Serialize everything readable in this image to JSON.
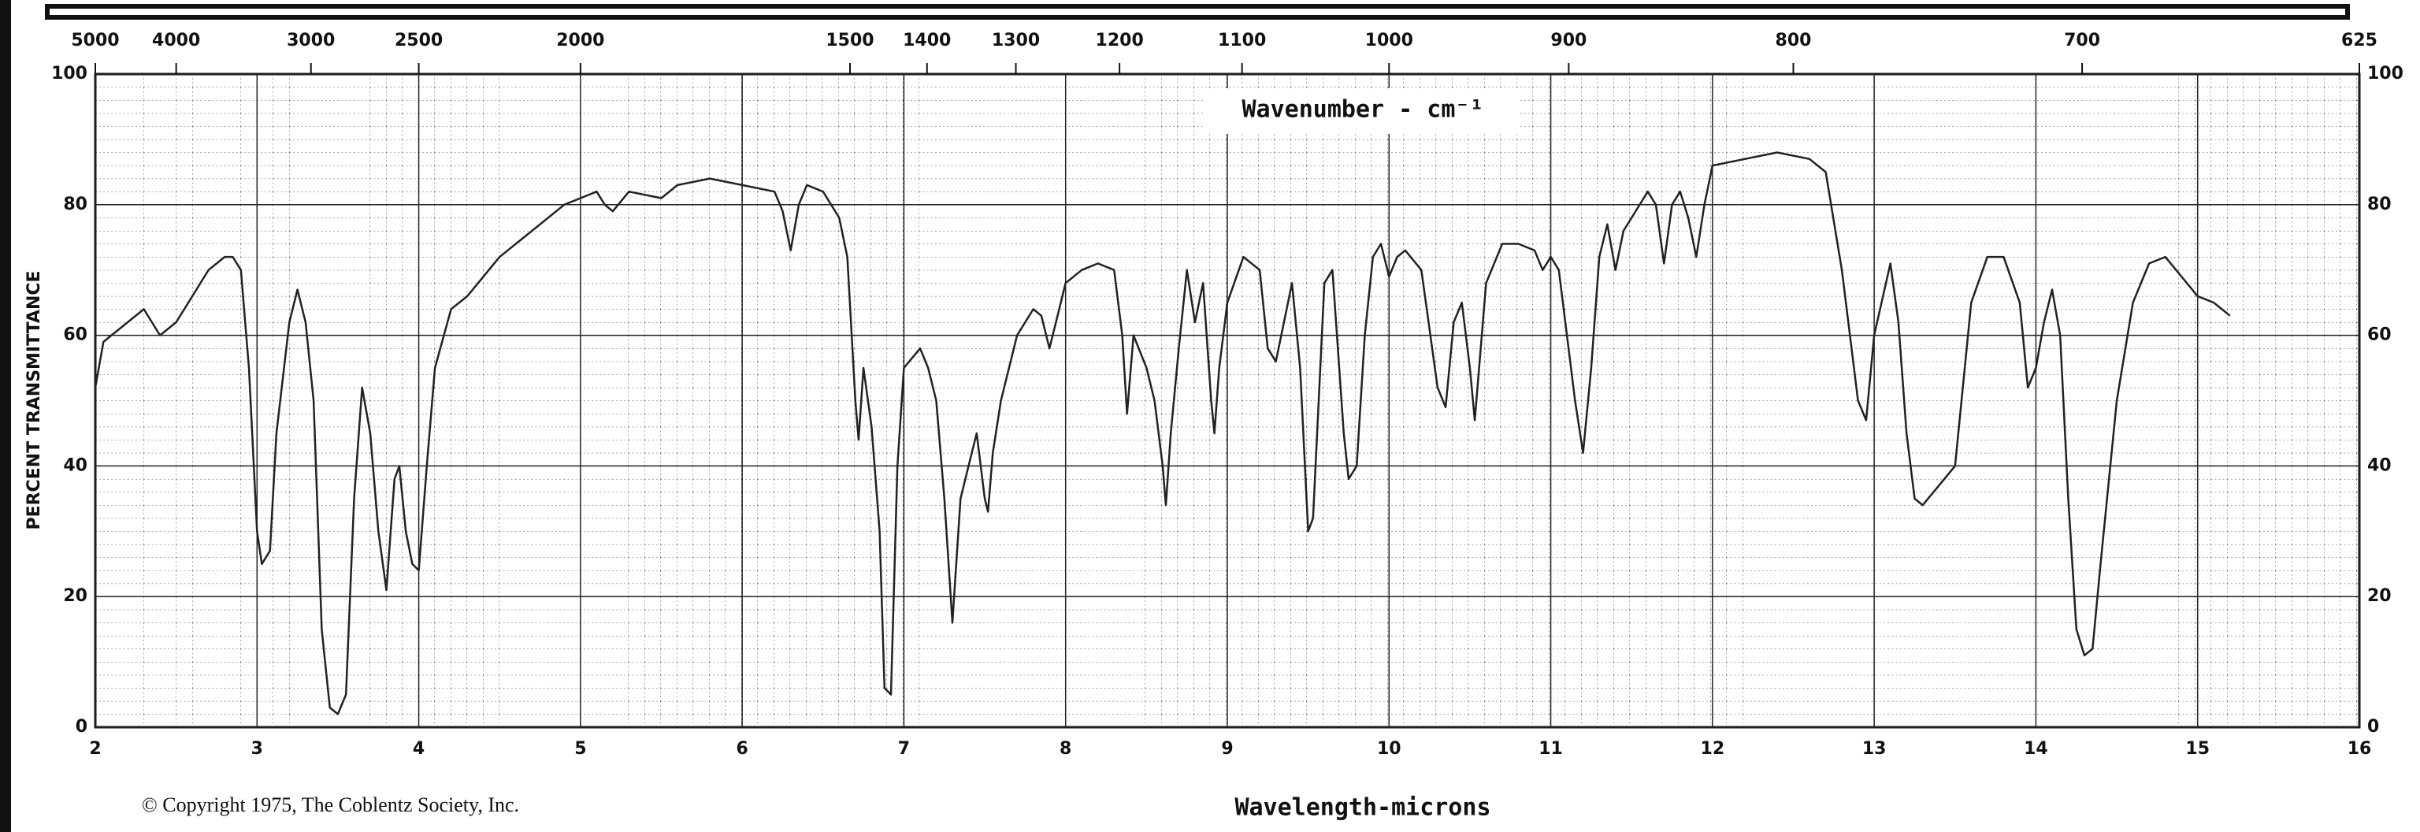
{
  "chart_data": {
    "type": "line",
    "x2label": "Wavenumber - cm⁻¹",
    "xlabel": "Wavelength-microns",
    "ylabel": "PERCENT TRANSMITTANCE",
    "copyright": "© Copyright 1975, The Coblentz Society, Inc.",
    "xlim": [
      2,
      16
    ],
    "ylim": [
      0,
      100
    ],
    "xticks": [
      2,
      3,
      4,
      5,
      6,
      7,
      8,
      9,
      10,
      11,
      12,
      13,
      14,
      15,
      16
    ],
    "yticks": [
      0,
      20,
      40,
      60,
      80,
      100
    ],
    "x2ticks": [
      5000,
      4000,
      3000,
      2500,
      2000,
      1500,
      1400,
      1300,
      1200,
      1100,
      1000,
      900,
      800,
      700,
      625
    ],
    "grid": true,
    "color": "#222222",
    "x": [
      2.0,
      2.05,
      2.2,
      2.3,
      2.4,
      2.5,
      2.6,
      2.7,
      2.8,
      2.85,
      2.9,
      2.95,
      3.0,
      3.03,
      3.08,
      3.12,
      3.2,
      3.25,
      3.3,
      3.35,
      3.4,
      3.45,
      3.5,
      3.55,
      3.6,
      3.65,
      3.7,
      3.75,
      3.8,
      3.85,
      3.88,
      3.92,
      3.96,
      4.0,
      4.05,
      4.1,
      4.2,
      4.3,
      4.5,
      4.7,
      4.9,
      5.0,
      5.1,
      5.15,
      5.2,
      5.3,
      5.5,
      5.6,
      5.8,
      6.0,
      6.2,
      6.25,
      6.3,
      6.35,
      6.4,
      6.5,
      6.6,
      6.65,
      6.7,
      6.72,
      6.75,
      6.8,
      6.85,
      6.88,
      6.92,
      6.96,
      7.0,
      7.1,
      7.15,
      7.2,
      7.25,
      7.3,
      7.35,
      7.4,
      7.45,
      7.5,
      7.52,
      7.55,
      7.6,
      7.7,
      7.8,
      7.85,
      7.9,
      7.95,
      8.0,
      8.1,
      8.2,
      8.3,
      8.35,
      8.38,
      8.42,
      8.5,
      8.55,
      8.6,
      8.62,
      8.65,
      8.7,
      8.75,
      8.8,
      8.85,
      8.9,
      8.92,
      8.95,
      9.0,
      9.1,
      9.2,
      9.25,
      9.3,
      9.35,
      9.4,
      9.45,
      9.5,
      9.53,
      9.6,
      9.65,
      9.72,
      9.75,
      9.8,
      9.85,
      9.9,
      9.95,
      10.0,
      10.05,
      10.1,
      10.2,
      10.3,
      10.35,
      10.4,
      10.45,
      10.5,
      10.53,
      10.6,
      10.7,
      10.8,
      10.9,
      10.95,
      11.0,
      11.05,
      11.15,
      11.2,
      11.25,
      11.3,
      11.35,
      11.4,
      11.45,
      11.5,
      11.6,
      11.65,
      11.7,
      11.75,
      11.8,
      11.85,
      11.9,
      11.95,
      12.0,
      12.2,
      12.4,
      12.6,
      12.7,
      12.8,
      12.9,
      12.95,
      13.0,
      13.1,
      13.15,
      13.2,
      13.25,
      13.3,
      13.4,
      13.5,
      13.6,
      13.7,
      13.8,
      13.9,
      13.95,
      14.0,
      14.05,
      14.1,
      14.15,
      14.2,
      14.25,
      14.3,
      14.35,
      14.4,
      14.5,
      14.6,
      14.7,
      14.8,
      14.9,
      15.0,
      15.1,
      15.2
    ],
    "values": [
      52,
      59,
      62,
      64,
      60,
      62,
      66,
      70,
      72,
      72,
      70,
      55,
      30,
      25,
      27,
      45,
      62,
      67,
      62,
      50,
      15,
      3,
      2,
      5,
      35,
      52,
      45,
      30,
      21,
      38,
      40,
      30,
      25,
      24,
      40,
      55,
      64,
      66,
      72,
      76,
      80,
      81,
      82,
      80,
      79,
      82,
      81,
      83,
      84,
      83,
      82,
      79,
      73,
      80,
      83,
      82,
      78,
      72,
      50,
      44,
      55,
      46,
      30,
      6,
      5,
      40,
      55,
      58,
      55,
      50,
      35,
      16,
      35,
      40,
      45,
      35,
      33,
      42,
      50,
      60,
      64,
      63,
      58,
      63,
      68,
      70,
      71,
      70,
      60,
      48,
      60,
      55,
      50,
      40,
      34,
      45,
      58,
      70,
      62,
      68,
      50,
      45,
      55,
      65,
      72,
      70,
      58,
      56,
      62,
      68,
      55,
      30,
      32,
      68,
      70,
      45,
      38,
      40,
      60,
      72,
      74,
      69,
      72,
      73,
      70,
      52,
      49,
      62,
      65,
      55,
      47,
      68,
      74,
      74,
      73,
      70,
      72,
      70,
      50,
      42,
      55,
      72,
      77,
      70,
      76,
      78,
      82,
      80,
      71,
      80,
      82,
      78,
      72,
      80,
      86,
      87,
      88,
      87,
      85,
      70,
      50,
      47,
      60,
      71,
      62,
      45,
      35,
      34,
      37,
      40,
      65,
      72,
      72,
      65,
      52,
      55,
      62,
      67,
      60,
      35,
      15,
      11,
      12,
      25,
      50,
      65,
      71,
      72,
      69,
      66,
      65,
      63
    ]
  }
}
